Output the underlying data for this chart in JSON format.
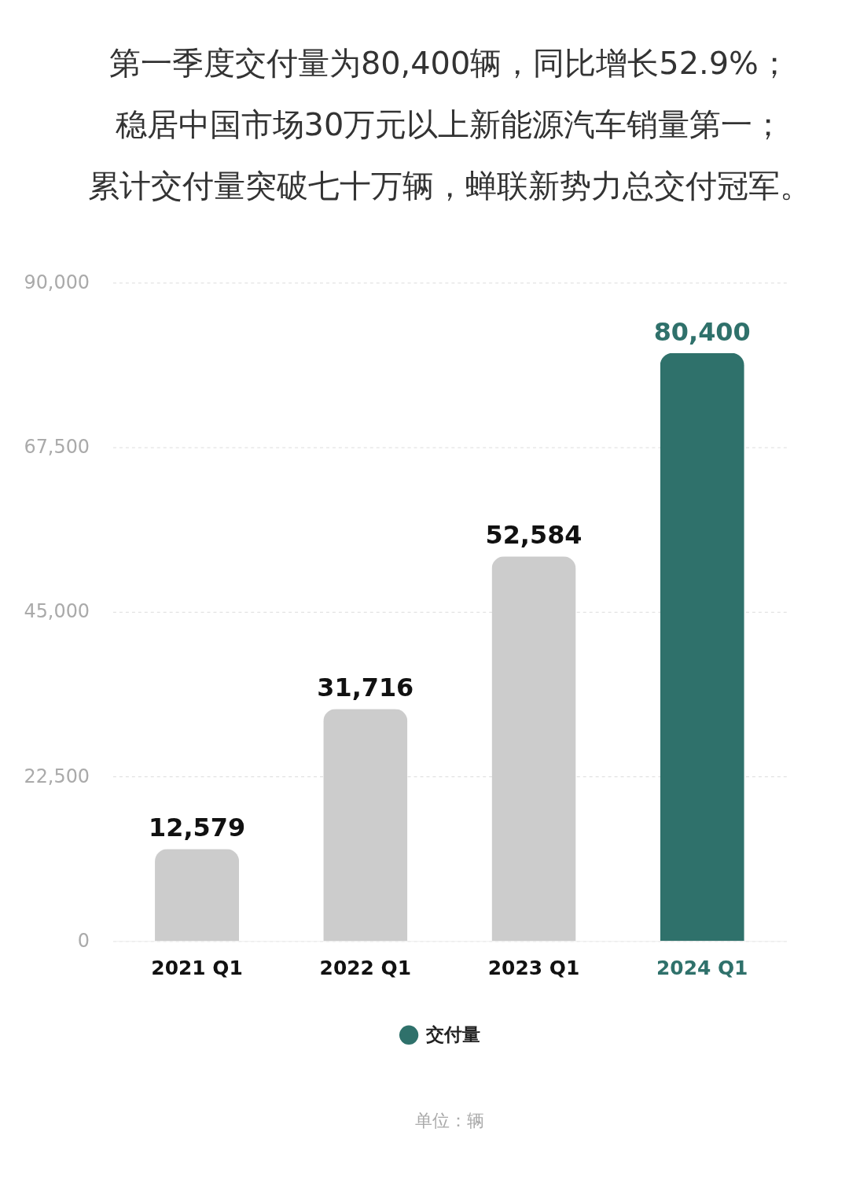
{
  "chart_data": {
    "type": "bar",
    "title": [
      "第一季度交付量为80,400辆，同比增长52.9%；",
      "稳居中国市场30万元以上新能源汽车销量第一；",
      "累计交付量突破七十万辆，蝉联新势力总交付冠军。"
    ],
    "categories": [
      "2021 Q1",
      "2022 Q1",
      "2023 Q1",
      "2024 Q1"
    ],
    "series": [
      {
        "name": "交付量",
        "color": "#2f716b",
        "colors": [
          "#cccccc",
          "#cccccc",
          "#cccccc",
          "#2f716b"
        ],
        "values": [
          12579,
          31716,
          52584,
          80400
        ],
        "value_labels": [
          "12,579",
          "31,716",
          "52,584",
          "80,400"
        ]
      }
    ],
    "ylim": [
      0,
      90000
    ],
    "yticks": [
      0,
      {
        "value": 22500,
        "label": "22,500"
      },
      {
        "value": 45000,
        "label": "45,000"
      },
      {
        "value": 67500,
        "label": "67,500"
      },
      {
        "value": 90000,
        "label": "90,000"
      }
    ],
    "grid": "y",
    "legend": "bottom",
    "annotations": [
      "单位：辆"
    ]
  }
}
